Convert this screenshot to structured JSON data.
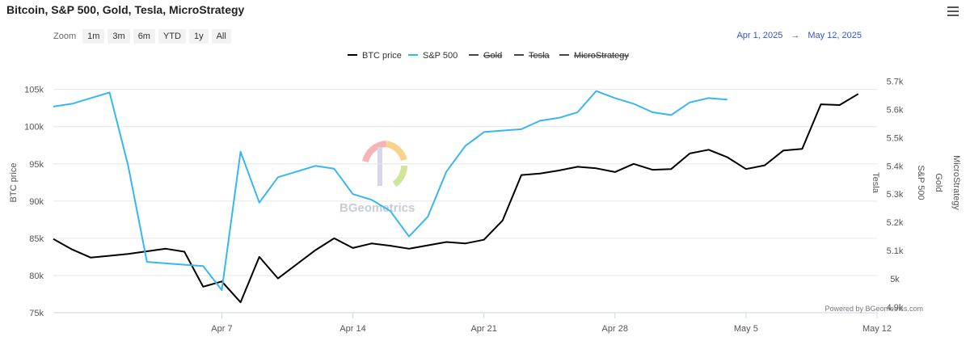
{
  "header": {
    "title": "Bitcoin, S&P 500, Gold, Tesla, MicroStrategy"
  },
  "zoom": {
    "label": "Zoom",
    "buttons": [
      "1m",
      "3m",
      "6m",
      "YTD",
      "1y",
      "All"
    ]
  },
  "range": {
    "from": "Apr 1, 2025",
    "arrow": "→",
    "to": "May 12, 2025"
  },
  "watermark": "BGeometrics",
  "powered_by": "Powered by BGeometrics.com",
  "chart_data": {
    "type": "line",
    "legend": [
      {
        "name": "BTC price",
        "color": "#000000",
        "hidden": false
      },
      {
        "name": "S&P 500",
        "color": "#38b6f2",
        "hidden": false
      },
      {
        "name": "Gold",
        "color": "#444444",
        "hidden": true
      },
      {
        "name": "Tesla",
        "color": "#444444",
        "hidden": true
      },
      {
        "name": "MicroStrategy",
        "color": "#444444",
        "hidden": true
      }
    ],
    "xlim": [
      "2025-03-29",
      "2025-05-12"
    ],
    "x_ticks": [
      {
        "date": "2025-04-07",
        "label": "Apr 7"
      },
      {
        "date": "2025-04-14",
        "label": "Apr 14"
      },
      {
        "date": "2025-04-21",
        "label": "Apr 21"
      },
      {
        "date": "2025-04-28",
        "label": "Apr 28"
      },
      {
        "date": "2025-05-05",
        "label": "May 5"
      },
      {
        "date": "2025-05-12",
        "label": "May 12"
      }
    ],
    "y_left": {
      "label": "BTC price",
      "ylim": [
        75000,
        108000
      ],
      "ticks": [
        75000,
        80000,
        85000,
        90000,
        95000,
        100000,
        105000
      ],
      "tick_labels": [
        "75k",
        "80k",
        "85k",
        "90k",
        "95k",
        "100k",
        "105k"
      ]
    },
    "y_right": {
      "label": "S&P 500",
      "ylim": [
        4880,
        5750
      ],
      "ticks": [
        4900,
        5000,
        5100,
        5200,
        5300,
        5400,
        5500,
        5600,
        5700
      ],
      "tick_labels": [
        "4.9k",
        "5k",
        "5.1k",
        "5.2k",
        "5.3k",
        "5.4k",
        "5.5k",
        "5.6k",
        "5.7k"
      ]
    },
    "hidden_axis_labels": [
      "Tesla",
      "Gold",
      "MicroStrategy"
    ],
    "series": [
      {
        "name": "BTC price",
        "axis": "left",
        "color": "#000000",
        "points": [
          [
            "2025-03-29",
            84900
          ],
          [
            "2025-03-30",
            83500
          ],
          [
            "2025-03-31",
            82400
          ],
          [
            "2025-04-02",
            82900
          ],
          [
            "2025-04-04",
            83600
          ],
          [
            "2025-04-05",
            83200
          ],
          [
            "2025-04-06",
            78500
          ],
          [
            "2025-04-07",
            79200
          ],
          [
            "2025-04-08",
            76400
          ],
          [
            "2025-04-09",
            82500
          ],
          [
            "2025-04-10",
            79600
          ],
          [
            "2025-04-12",
            83400
          ],
          [
            "2025-04-13",
            85000
          ],
          [
            "2025-04-14",
            83700
          ],
          [
            "2025-04-15",
            84300
          ],
          [
            "2025-04-16",
            84000
          ],
          [
            "2025-04-17",
            83600
          ],
          [
            "2025-04-19",
            84500
          ],
          [
            "2025-04-20",
            84300
          ],
          [
            "2025-04-21",
            84800
          ],
          [
            "2025-04-22",
            87400
          ],
          [
            "2025-04-23",
            93500
          ],
          [
            "2025-04-24",
            93700
          ],
          [
            "2025-04-25",
            94100
          ],
          [
            "2025-04-26",
            94600
          ],
          [
            "2025-04-27",
            94400
          ],
          [
            "2025-04-28",
            93900
          ],
          [
            "2025-04-29",
            95000
          ],
          [
            "2025-04-30",
            94200
          ],
          [
            "2025-05-01",
            94300
          ],
          [
            "2025-05-02",
            96400
          ],
          [
            "2025-05-03",
            96900
          ],
          [
            "2025-05-04",
            95900
          ],
          [
            "2025-05-05",
            94300
          ],
          [
            "2025-05-06",
            94800
          ],
          [
            "2025-05-07",
            96800
          ],
          [
            "2025-05-08",
            97000
          ],
          [
            "2025-05-09",
            103000
          ],
          [
            "2025-05-10",
            102900
          ],
          [
            "2025-05-11",
            104400
          ]
        ]
      },
      {
        "name": "S&P 500",
        "axis": "right",
        "color": "#38b6f2",
        "points": [
          [
            "2025-03-29",
            5610
          ],
          [
            "2025-03-30",
            5620
          ],
          [
            "2025-03-31",
            5640
          ],
          [
            "2025-04-01",
            5660
          ],
          [
            "2025-04-02",
            5400
          ],
          [
            "2025-04-03",
            5060
          ],
          [
            "2025-04-04",
            5055
          ],
          [
            "2025-04-05",
            5050
          ],
          [
            "2025-04-06",
            5045
          ],
          [
            "2025-04-07",
            4960
          ],
          [
            "2025-04-08",
            5450
          ],
          [
            "2025-04-09",
            5270
          ],
          [
            "2025-04-10",
            5360
          ],
          [
            "2025-04-11",
            5380
          ],
          [
            "2025-04-12",
            5400
          ],
          [
            "2025-04-13",
            5390
          ],
          [
            "2025-04-14",
            5300
          ],
          [
            "2025-04-15",
            5280
          ],
          [
            "2025-04-16",
            5240
          ],
          [
            "2025-04-17",
            5150
          ],
          [
            "2025-04-18",
            5220
          ],
          [
            "2025-04-19",
            5380
          ],
          [
            "2025-04-20",
            5470
          ],
          [
            "2025-04-21",
            5520
          ],
          [
            "2025-04-22",
            5525
          ],
          [
            "2025-04-23",
            5530
          ],
          [
            "2025-04-24",
            5560
          ],
          [
            "2025-04-25",
            5570
          ],
          [
            "2025-04-26",
            5590
          ],
          [
            "2025-04-27",
            5665
          ],
          [
            "2025-04-28",
            5640
          ],
          [
            "2025-04-29",
            5620
          ],
          [
            "2025-04-30",
            5590
          ],
          [
            "2025-05-01",
            5580
          ],
          [
            "2025-05-02",
            5625
          ],
          [
            "2025-05-03",
            5640
          ],
          [
            "2025-05-04",
            5635
          ]
        ]
      }
    ]
  }
}
